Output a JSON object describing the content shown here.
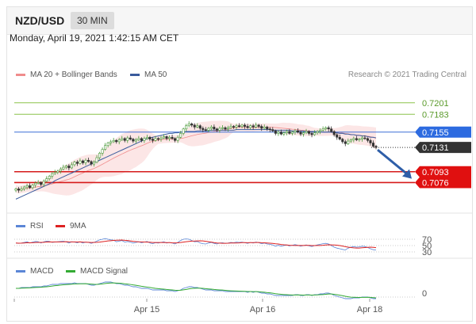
{
  "header": {
    "symbol": "NZD/USD",
    "timeframe": "30 MIN"
  },
  "datetime": "Monday, April 19, 2021 1:42:15 AM CET",
  "legend": {
    "main": [
      {
        "label": "MA 20 + Bollinger Bands",
        "color": "#f08c8c"
      },
      {
        "label": "MA 50",
        "color": "#3a5b9c"
      }
    ],
    "research": "Research © 2021 Trading Central",
    "rsi": [
      {
        "label": "RSI",
        "color": "#5b86d6"
      },
      {
        "label": "9MA",
        "color": "#dd2222"
      }
    ],
    "macd": [
      {
        "label": "MACD",
        "color": "#5b86d6"
      },
      {
        "label": "MACD Signal",
        "color": "#33aa33"
      }
    ]
  },
  "colors": {
    "up_candle": "#4b9a3b",
    "down_candle": "#333333",
    "resistance": "#8bc34a",
    "pivot": "#3b6fd6",
    "support": "#d61a1a",
    "last_price": "#333333",
    "bb_fill": "#fbe2e2"
  },
  "chart_data": {
    "type": "candlestick",
    "xlabels": [
      "Apr 15",
      "Apr 16",
      "Apr 18"
    ],
    "ylim": [
      0.7048,
      0.7228
    ],
    "levels": [
      {
        "value": 0.7201,
        "label": "0.7201",
        "kind": "resistance"
      },
      {
        "value": 0.7183,
        "label": "0.7183",
        "kind": "resistance"
      },
      {
        "value": 0.7155,
        "label": "0.7155",
        "kind": "pivot"
      },
      {
        "value": 0.7131,
        "label": "0.7131",
        "kind": "last"
      },
      {
        "value": 0.7093,
        "label": "0.7093",
        "kind": "support"
      },
      {
        "value": 0.7076,
        "label": "0.7076",
        "kind": "support"
      }
    ],
    "close": [
      0.7066,
      0.7064,
      0.7066,
      0.7069,
      0.7071,
      0.7068,
      0.7072,
      0.7075,
      0.7076,
      0.7073,
      0.7078,
      0.7082,
      0.7086,
      0.709,
      0.7092,
      0.7094,
      0.7097,
      0.71,
      0.7102,
      0.7099,
      0.7104,
      0.7108,
      0.7106,
      0.711,
      0.7107,
      0.7111,
      0.7109,
      0.7105,
      0.7108,
      0.7115,
      0.7122,
      0.7128,
      0.7134,
      0.7138,
      0.714,
      0.7142,
      0.714,
      0.7143,
      0.7145,
      0.7142,
      0.7146,
      0.7144,
      0.7141,
      0.7143,
      0.7145,
      0.7142,
      0.7145,
      0.7147,
      0.7144,
      0.7142,
      0.7145,
      0.7144,
      0.7146,
      0.7148,
      0.7145,
      0.7147,
      0.7145,
      0.7142,
      0.7147,
      0.7153,
      0.716,
      0.7165,
      0.7168,
      0.7166,
      0.7163,
      0.7165,
      0.7161,
      0.7159,
      0.7158,
      0.7161,
      0.7163,
      0.716,
      0.7158,
      0.7161,
      0.7162,
      0.716,
      0.7162,
      0.7164,
      0.7163,
      0.7165,
      0.7164,
      0.7166,
      0.7164,
      0.7162,
      0.7165,
      0.7163,
      0.7166,
      0.7164,
      0.7161,
      0.7163,
      0.716,
      0.7159,
      0.7157,
      0.7153,
      0.7155,
      0.7152,
      0.7154,
      0.7156,
      0.7153,
      0.7155,
      0.7157,
      0.7155,
      0.7152,
      0.7154,
      0.7156,
      0.7153,
      0.7151,
      0.7154,
      0.7156,
      0.7158,
      0.716,
      0.7162,
      0.716,
      0.7156,
      0.7151,
      0.7147,
      0.7144,
      0.714,
      0.7137,
      0.7141,
      0.7143,
      0.7145,
      0.7143,
      0.7144,
      0.7146,
      0.7145,
      0.7142,
      0.7138,
      0.7133,
      0.7131
    ],
    "ma50": [
      0.705,
      0.7052,
      0.7054,
      0.7056,
      0.7058,
      0.706,
      0.7062,
      0.7064,
      0.7066,
      0.7068,
      0.707,
      0.7072,
      0.7074,
      0.7076,
      0.7079,
      0.7081,
      0.7083,
      0.7085,
      0.7087,
      0.7089,
      0.7091,
      0.7093,
      0.7095,
      0.7097,
      0.7099,
      0.7101,
      0.7103,
      0.7105,
      0.7107,
      0.7109,
      0.7111,
      0.7113,
      0.7115,
      0.7117,
      0.7119,
      0.7121,
      0.7123,
      0.7125,
      0.7127,
      0.7129,
      0.7131,
      0.7133,
      0.7135,
      0.7137,
      0.7139,
      0.7141,
      0.7143,
      0.7145,
      0.7146,
      0.7147,
      0.7148,
      0.7149,
      0.715,
      0.7151,
      0.7152,
      0.7153,
      0.7153,
      0.7154,
      0.7154,
      0.7155,
      0.7155,
      0.7156,
      0.7156,
      0.7156,
      0.7156,
      0.7157,
      0.7157,
      0.7157,
      0.7157,
      0.7157,
      0.7158,
      0.7158,
      0.7158,
      0.7158,
      0.7158,
      0.7158,
      0.7158,
      0.7158,
      0.7158,
      0.7159,
      0.7159,
      0.7159,
      0.7159,
      0.7159,
      0.7159,
      0.7159,
      0.7159,
      0.7159,
      0.7159,
      0.7159,
      0.7159,
      0.7159,
      0.7158,
      0.7158,
      0.7158,
      0.7158,
      0.7158,
      0.7158,
      0.7158,
      0.7157,
      0.7157,
      0.7157,
      0.7157,
      0.7157,
      0.7156,
      0.7156,
      0.7156,
      0.7156,
      0.7156,
      0.7156,
      0.7155,
      0.7155,
      0.7155,
      0.7155,
      0.7154,
      0.7154,
      0.7153,
      0.7153,
      0.7152,
      0.7152,
      0.7151,
      0.7151,
      0.715,
      0.715,
      0.7149,
      0.7149,
      0.7148,
      0.7147,
      0.7147,
      0.7146
    ],
    "rsi": [
      58,
      57,
      58,
      60,
      62,
      58,
      61,
      63,
      62,
      58,
      62,
      64,
      63,
      60,
      61,
      62,
      63,
      64,
      62,
      58,
      62,
      61,
      59,
      62,
      58,
      61,
      60,
      57,
      60,
      64,
      68,
      70,
      72,
      70,
      68,
      67,
      62,
      64,
      66,
      61,
      63,
      61,
      58,
      60,
      62,
      59,
      61,
      63,
      58,
      56,
      59,
      58,
      60,
      62,
      58,
      60,
      58,
      55,
      60,
      66,
      70,
      71,
      70,
      66,
      62,
      63,
      58,
      56,
      55,
      58,
      60,
      57,
      55,
      58,
      59,
      57,
      58,
      60,
      59,
      61,
      60,
      61,
      59,
      57,
      60,
      58,
      61,
      59,
      56,
      58,
      55,
      54,
      52,
      48,
      51,
      48,
      50,
      52,
      49,
      51,
      53,
      51,
      48,
      50,
      52,
      49,
      47,
      50,
      52,
      54,
      56,
      57,
      55,
      50,
      45,
      42,
      40,
      38,
      36,
      42,
      45,
      47,
      45,
      46,
      48,
      47,
      44,
      40,
      37,
      36
    ],
    "macd": [
      0.0006,
      0.0006,
      0.0007,
      0.0007,
      0.0007,
      0.0007,
      0.0008,
      0.0008,
      0.0008,
      0.0008,
      0.0009,
      0.0009,
      0.001,
      0.0011,
      0.0011,
      0.0011,
      0.0012,
      0.0012,
      0.0012,
      0.0012,
      0.0012,
      0.0013,
      0.0012,
      0.0012,
      0.0012,
      0.0012,
      0.0011,
      0.001,
      0.001,
      0.0011,
      0.0012,
      0.0013,
      0.0014,
      0.0014,
      0.0014,
      0.0013,
      0.0012,
      0.0012,
      0.0011,
      0.001,
      0.001,
      0.0009,
      0.0008,
      0.0008,
      0.0007,
      0.0006,
      0.0006,
      0.0006,
      0.0005,
      0.0004,
      0.0004,
      0.0004,
      0.0004,
      0.0004,
      0.0003,
      0.0003,
      0.0003,
      0.0002,
      0.0003,
      0.0004,
      0.0006,
      0.0007,
      0.0008,
      0.0008,
      0.0007,
      0.0007,
      0.0006,
      0.0005,
      0.0004,
      0.0004,
      0.0004,
      0.0003,
      0.0003,
      0.0003,
      0.0003,
      0.0002,
      0.0002,
      0.0002,
      0.0002,
      0.0002,
      0.0002,
      0.0002,
      0.0002,
      0.0001,
      0.0002,
      0.0001,
      0.0002,
      0.0001,
      0.0,
      0.0,
      -0.0001,
      -0.0001,
      -0.0002,
      -0.0003,
      -0.0003,
      -0.0003,
      -0.0003,
      -0.0003,
      -0.0003,
      -0.0003,
      -0.0002,
      -0.0002,
      -0.0003,
      -0.0003,
      -0.0002,
      -0.0002,
      -0.0003,
      -0.0002,
      -0.0002,
      -0.0001,
      -0.0001,
      0.0,
      0.0,
      -0.0001,
      -0.0003,
      -0.0004,
      -0.0005,
      -0.0006,
      -0.0007,
      -0.0007,
      -0.0007,
      -0.0006,
      -0.0006,
      -0.0006,
      -0.0005,
      -0.0005,
      -0.0005,
      -0.0006,
      -0.0007,
      -0.0007
    ],
    "rsi_ticks": [
      30,
      50,
      70
    ],
    "macd_ticks": [
      0
    ]
  }
}
